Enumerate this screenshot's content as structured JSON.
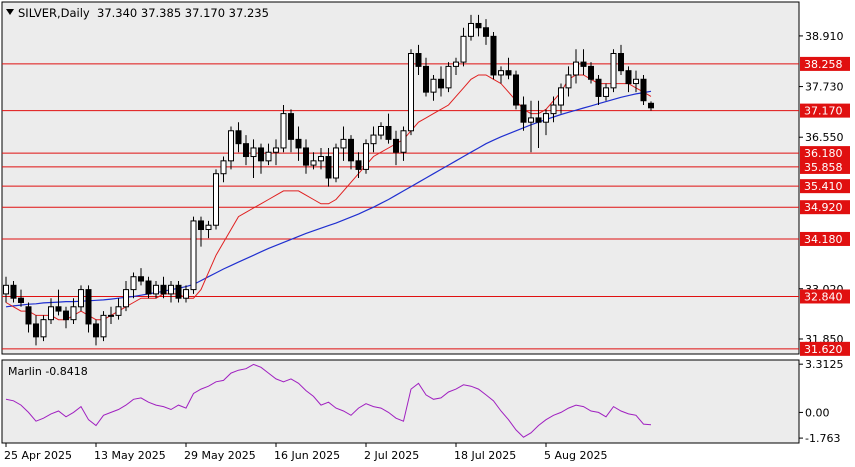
{
  "header": {
    "symbol_title": "SILVER,Daily",
    "ohlc": "37.340 37.385 37.170 37.235"
  },
  "colors": {
    "background": "#ffffff",
    "plot_bg": "#ececec",
    "candle": "#000000",
    "level_line": "#e01010",
    "level_label_bg": "#e01010",
    "level_label_text": "#ffffff",
    "ma_fast": "#e02020",
    "ma_slow": "#2030d0",
    "oscillator": "#a020c0"
  },
  "chart_data": [
    {
      "type": "candlestick",
      "title": "SILVER,Daily",
      "ylim": [
        31.5,
        39.7
      ],
      "price_axis_ticks": [
        "38.910",
        "37.730",
        "36.550",
        "33.020",
        "31.850"
      ],
      "date_axis_ticks": [
        "25 Apr 2025",
        "13 May 2025",
        "29 May 2025",
        "16 Jun 2025",
        "2 Jul 2025",
        "18 Jul 2025",
        "5 Aug 2025"
      ],
      "date_tick_index": [
        0,
        12,
        24,
        36,
        48,
        60,
        72
      ],
      "horizontal_levels": [
        "38.258",
        "37.170",
        "36.180",
        "35.858",
        "35.410",
        "34.920",
        "34.180",
        "32.840",
        "31.620"
      ],
      "ohlc": [
        [
          32.9,
          33.3,
          32.7,
          33.1
        ],
        [
          33.1,
          33.2,
          32.7,
          32.8
        ],
        [
          32.8,
          33.0,
          32.6,
          32.7
        ],
        [
          32.6,
          32.7,
          32.0,
          32.2
        ],
        [
          32.2,
          32.4,
          31.7,
          31.9
        ],
        [
          31.9,
          32.4,
          31.8,
          32.3
        ],
        [
          32.3,
          32.8,
          32.2,
          32.6
        ],
        [
          32.6,
          33.0,
          32.4,
          32.5
        ],
        [
          32.5,
          32.6,
          32.1,
          32.3
        ],
        [
          32.3,
          32.8,
          32.2,
          32.6
        ],
        [
          32.6,
          33.1,
          32.5,
          33.0
        ],
        [
          33.0,
          33.1,
          32.0,
          32.2
        ],
        [
          32.2,
          32.3,
          31.7,
          31.9
        ],
        [
          31.9,
          32.5,
          31.8,
          32.4
        ],
        [
          32.4,
          32.6,
          32.2,
          32.4
        ],
        [
          32.4,
          32.8,
          32.3,
          32.6
        ],
        [
          32.6,
          33.2,
          32.5,
          33.0
        ],
        [
          33.0,
          33.4,
          32.8,
          33.3
        ],
        [
          33.3,
          33.5,
          33.1,
          33.2
        ],
        [
          33.2,
          33.3,
          32.8,
          32.9
        ],
        [
          32.9,
          33.2,
          32.8,
          33.1
        ],
        [
          33.1,
          33.3,
          32.8,
          32.9
        ],
        [
          32.9,
          33.2,
          32.7,
          33.1
        ],
        [
          33.1,
          33.2,
          32.7,
          32.8
        ],
        [
          32.8,
          33.1,
          32.7,
          33.0
        ],
        [
          33.0,
          34.7,
          32.9,
          34.6
        ],
        [
          34.6,
          34.7,
          34.0,
          34.4
        ],
        [
          34.4,
          34.6,
          34.2,
          34.5
        ],
        [
          34.5,
          35.8,
          34.4,
          35.7
        ],
        [
          35.7,
          36.1,
          35.5,
          36.0
        ],
        [
          36.0,
          36.8,
          35.8,
          36.7
        ],
        [
          36.7,
          36.9,
          36.2,
          36.4
        ],
        [
          36.4,
          36.6,
          35.9,
          36.1
        ],
        [
          36.1,
          36.5,
          35.6,
          36.3
        ],
        [
          36.3,
          36.4,
          35.7,
          36.0
        ],
        [
          36.0,
          36.4,
          35.9,
          36.2
        ],
        [
          36.2,
          36.5,
          35.9,
          36.3
        ],
        [
          36.3,
          37.3,
          36.2,
          37.1
        ],
        [
          37.1,
          37.2,
          36.2,
          36.5
        ],
        [
          36.5,
          36.8,
          36.0,
          36.3
        ],
        [
          36.3,
          36.5,
          35.7,
          35.9
        ],
        [
          35.9,
          36.2,
          35.8,
          36.0
        ],
        [
          36.0,
          36.3,
          35.8,
          36.1
        ],
        [
          36.1,
          36.3,
          35.4,
          35.6
        ],
        [
          35.6,
          36.4,
          35.5,
          36.3
        ],
        [
          36.3,
          36.8,
          36.0,
          36.5
        ],
        [
          36.5,
          36.6,
          35.8,
          36.0
        ],
        [
          36.0,
          36.2,
          35.6,
          35.8
        ],
        [
          35.8,
          36.5,
          35.7,
          36.4
        ],
        [
          36.4,
          36.8,
          36.2,
          36.6
        ],
        [
          36.6,
          36.9,
          36.5,
          36.8
        ],
        [
          36.8,
          37.1,
          36.4,
          36.5
        ],
        [
          36.5,
          36.7,
          35.9,
          36.2
        ],
        [
          36.2,
          36.8,
          36.0,
          36.7
        ],
        [
          36.7,
          38.6,
          36.6,
          38.5
        ],
        [
          38.5,
          38.7,
          38.0,
          38.2
        ],
        [
          38.2,
          38.4,
          37.5,
          37.6
        ],
        [
          37.6,
          38.0,
          37.4,
          37.9
        ],
        [
          37.9,
          38.2,
          37.5,
          37.7
        ],
        [
          37.7,
          38.3,
          37.6,
          38.2
        ],
        [
          38.2,
          38.4,
          38.0,
          38.3
        ],
        [
          38.3,
          39.1,
          38.2,
          38.9
        ],
        [
          38.9,
          39.4,
          38.8,
          39.2
        ],
        [
          39.2,
          39.4,
          38.9,
          39.1
        ],
        [
          39.1,
          39.3,
          38.7,
          38.9
        ],
        [
          38.9,
          39.0,
          37.9,
          38.0
        ],
        [
          38.0,
          38.2,
          37.8,
          38.1
        ],
        [
          38.1,
          38.4,
          37.9,
          38.0
        ],
        [
          38.0,
          38.1,
          37.2,
          37.3
        ],
        [
          37.3,
          37.5,
          36.7,
          36.9
        ],
        [
          36.9,
          37.4,
          36.2,
          37.0
        ],
        [
          37.0,
          37.4,
          36.3,
          36.9
        ],
        [
          36.9,
          37.2,
          36.6,
          37.1
        ],
        [
          37.1,
          37.5,
          36.9,
          37.3
        ],
        [
          37.3,
          37.8,
          37.1,
          37.7
        ],
        [
          37.7,
          38.2,
          37.5,
          38.0
        ],
        [
          38.0,
          38.6,
          37.8,
          38.3
        ],
        [
          38.3,
          38.6,
          38.0,
          38.2
        ],
        [
          38.2,
          38.3,
          37.8,
          37.9
        ],
        [
          37.9,
          38.0,
          37.3,
          37.5
        ],
        [
          37.5,
          37.8,
          37.4,
          37.7
        ],
        [
          37.7,
          38.6,
          37.6,
          38.5
        ],
        [
          38.5,
          38.7,
          38.0,
          38.1
        ],
        [
          38.1,
          38.2,
          37.6,
          37.8
        ],
        [
          37.8,
          38.1,
          37.6,
          37.9
        ],
        [
          37.9,
          38.0,
          37.3,
          37.4
        ],
        [
          37.34,
          37.385,
          37.17,
          37.235
        ]
      ],
      "ma_fast": [
        32.7,
        32.6,
        32.5,
        32.5,
        32.4,
        32.4,
        32.4,
        32.3,
        32.3,
        32.4,
        32.5,
        32.4,
        32.3,
        32.3,
        32.4,
        32.5,
        32.6,
        32.7,
        32.8,
        32.8,
        32.8,
        32.9,
        32.9,
        32.9,
        32.8,
        32.8,
        33.0,
        33.4,
        33.8,
        34.1,
        34.4,
        34.7,
        34.8,
        34.9,
        35.0,
        35.1,
        35.2,
        35.3,
        35.3,
        35.3,
        35.2,
        35.1,
        35.0,
        35.0,
        35.1,
        35.3,
        35.5,
        35.7,
        35.9,
        36.1,
        36.2,
        36.3,
        36.4,
        36.5,
        36.7,
        36.9,
        37.0,
        37.1,
        37.2,
        37.3,
        37.5,
        37.7,
        37.9,
        38.0,
        38.0,
        37.9,
        37.8,
        37.6,
        37.4,
        37.2,
        37.1,
        37.1,
        37.2,
        37.4,
        37.6,
        37.9,
        38.0,
        38.0,
        37.9,
        37.8,
        37.8,
        37.8,
        37.8,
        37.8,
        37.7,
        37.6,
        37.5
      ],
      "ma_slow": [
        32.6,
        32.62,
        32.64,
        32.66,
        32.67,
        32.69,
        32.7,
        32.71,
        32.72,
        32.72,
        32.73,
        32.74,
        32.75,
        32.76,
        32.78,
        32.8,
        32.82,
        32.84,
        32.87,
        32.9,
        32.93,
        32.96,
        33.0,
        33.03,
        33.07,
        33.12,
        33.21,
        33.3,
        33.39,
        33.48,
        33.56,
        33.64,
        33.72,
        33.8,
        33.88,
        33.96,
        34.03,
        34.1,
        34.17,
        34.24,
        34.31,
        34.37,
        34.43,
        34.49,
        34.55,
        34.62,
        34.69,
        34.76,
        34.84,
        34.92,
        35.01,
        35.1,
        35.2,
        35.3,
        35.4,
        35.5,
        35.6,
        35.7,
        35.8,
        35.9,
        36.0,
        36.1,
        36.2,
        36.3,
        36.4,
        36.48,
        36.56,
        36.63,
        36.7,
        36.77,
        36.84,
        36.9,
        36.96,
        37.02,
        37.08,
        37.13,
        37.18,
        37.23,
        37.28,
        37.33,
        37.38,
        37.43,
        37.48,
        37.52,
        37.56,
        37.59,
        37.62
      ]
    },
    {
      "type": "line",
      "title": "Marlin -0.8418",
      "ylim": [
        -2.1,
        3.6
      ],
      "axis_ticks": [
        "3.3125",
        "0.00",
        "-1.763"
      ],
      "values": [
        0.9,
        0.8,
        0.5,
        0.0,
        -0.6,
        -0.4,
        -0.1,
        0.1,
        -0.3,
        0.0,
        0.4,
        -0.5,
        -0.9,
        -0.2,
        0.0,
        0.2,
        0.5,
        0.9,
        1.0,
        0.7,
        0.5,
        0.4,
        0.2,
        0.5,
        0.3,
        1.3,
        1.6,
        1.8,
        2.1,
        2.2,
        2.7,
        2.9,
        3.0,
        3.3,
        3.1,
        2.7,
        2.3,
        2.1,
        2.3,
        2.0,
        1.5,
        1.1,
        0.5,
        0.7,
        0.3,
        0.1,
        -0.2,
        0.3,
        0.6,
        0.4,
        0.3,
        0.0,
        -0.4,
        -0.6,
        1.6,
        2.0,
        1.2,
        0.9,
        1.0,
        1.4,
        1.6,
        1.9,
        1.8,
        1.6,
        1.2,
        0.8,
        0.1,
        -0.5,
        -1.2,
        -1.7,
        -1.4,
        -0.9,
        -0.5,
        -0.2,
        0.0,
        0.3,
        0.5,
        0.4,
        0.1,
        0.0,
        -0.3,
        0.4,
        0.1,
        -0.1,
        -0.2,
        -0.8,
        -0.84
      ]
    }
  ]
}
